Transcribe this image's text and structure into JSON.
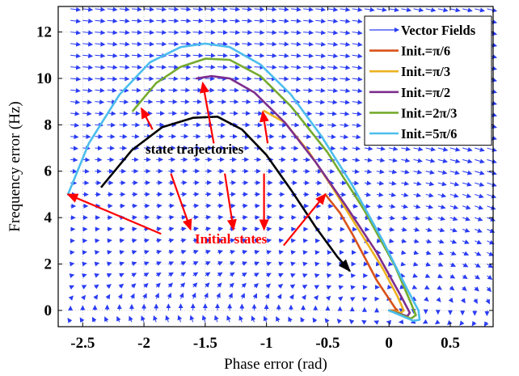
{
  "chart_data": {
    "type": "line",
    "xlabel": "Phase error (rad)",
    "ylabel": "Frequency error (Hz)",
    "xlim": [
      -2.7,
      0.85
    ],
    "ylim": [
      -0.7,
      13.1
    ],
    "xticks": [
      -2.5,
      -2,
      -1.5,
      -1,
      -0.5,
      0,
      0.5
    ],
    "xtick_labels": [
      "-2.5",
      "-2",
      "-1.5",
      "-1",
      "-0.5",
      "0",
      "0.5"
    ],
    "yticks": [
      0,
      2,
      4,
      6,
      8,
      10,
      12
    ],
    "ytick_labels": [
      "0",
      "2",
      "4",
      "6",
      "8",
      "10",
      "12"
    ],
    "grid": true,
    "legend_position": "top-right",
    "legend_label_prefix": "Init.=",
    "legend": [
      {
        "label": "Vector Fields",
        "symbol": "arrow",
        "color": "#2a3cf2"
      },
      {
        "label": "π/6",
        "symbol": "line",
        "color": "#d9531a"
      },
      {
        "label": "π/3",
        "symbol": "line",
        "color": "#edb11f"
      },
      {
        "label": "π/2",
        "symbol": "line",
        "color": "#7d2e8d"
      },
      {
        "label": "2π/3",
        "symbol": "line",
        "color": "#76ab2f"
      },
      {
        "label": "5π/6",
        "symbol": "line",
        "color": "#4cbded"
      }
    ],
    "series": [
      {
        "color": "#d9531a",
        "x": [
          -0.52,
          -0.4,
          -0.3,
          -0.2,
          -0.1,
          0.0,
          0.05,
          0.07,
          0.0
        ],
        "y": [
          5.0,
          4.2,
          3.3,
          2.3,
          1.3,
          0.5,
          0.1,
          0.0,
          0.0
        ]
      },
      {
        "color": "#edb11f",
        "x": [
          -1.02,
          -0.85,
          -0.65,
          -0.45,
          -0.25,
          -0.05,
          0.07,
          0.12,
          0.1,
          0.0
        ],
        "y": [
          8.6,
          8.1,
          6.8,
          5.2,
          3.5,
          1.8,
          0.6,
          0.0,
          -0.1,
          0.0
        ]
      },
      {
        "color": "#7d2e8d",
        "x": [
          -1.57,
          -1.45,
          -1.3,
          -1.1,
          -0.85,
          -0.6,
          -0.35,
          -0.1,
          0.1,
          0.17,
          0.15,
          0.0
        ],
        "y": [
          10.0,
          10.1,
          10.0,
          9.4,
          8.1,
          6.4,
          4.5,
          2.5,
          0.6,
          -0.1,
          -0.25,
          0.0
        ]
      },
      {
        "color": "#76ab2f",
        "x": [
          -2.09,
          -1.9,
          -1.7,
          -1.5,
          -1.3,
          -1.05,
          -0.8,
          -0.5,
          -0.2,
          0.05,
          0.18,
          0.22,
          0.18,
          0.0
        ],
        "y": [
          8.6,
          9.8,
          10.5,
          10.85,
          10.8,
          10.1,
          8.8,
          6.8,
          4.3,
          1.9,
          0.3,
          -0.2,
          -0.35,
          0.0
        ]
      },
      {
        "color": "#4cbded",
        "x": [
          -2.62,
          -2.45,
          -2.2,
          -1.95,
          -1.7,
          -1.5,
          -1.3,
          -1.05,
          -0.8,
          -0.55,
          -0.3,
          -0.05,
          0.15,
          0.24,
          0.25,
          0.2,
          0.0
        ],
        "y": [
          5.0,
          7.2,
          9.3,
          10.7,
          11.35,
          11.5,
          11.35,
          10.6,
          9.3,
          7.5,
          5.4,
          3.0,
          0.9,
          0.0,
          -0.4,
          -0.45,
          0.0
        ]
      }
    ],
    "annotations": {
      "trajectory_label": "state trajectories",
      "initial_label": "Initial states",
      "black_curve": {
        "color": "#000000",
        "x": [
          -2.35,
          -2.1,
          -1.85,
          -1.6,
          -1.4,
          -1.2,
          -1.0,
          -0.8,
          -0.6,
          -0.42,
          -0.32
        ],
        "y": [
          5.3,
          6.9,
          7.9,
          8.3,
          8.35,
          7.8,
          6.7,
          5.2,
          3.6,
          2.3,
          1.7
        ]
      },
      "red_arrows": [
        {
          "from": [
            -1.93,
            7.8
          ],
          "to": [
            -2.02,
            8.7
          ]
        },
        {
          "from": [
            -1.43,
            7.2
          ],
          "to": [
            -1.52,
            9.8
          ]
        },
        {
          "from": [
            -0.99,
            7.2
          ],
          "to": [
            -1.03,
            8.55
          ]
        },
        {
          "from": [
            -1.78,
            5.9
          ],
          "to": [
            -1.62,
            3.5
          ]
        },
        {
          "from": [
            -1.34,
            5.9
          ],
          "to": [
            -1.27,
            3.5
          ]
        },
        {
          "from": [
            -1.02,
            5.9
          ],
          "to": [
            -1.02,
            3.5
          ]
        },
        {
          "from": [
            -1.86,
            3.3
          ],
          "to": [
            -2.62,
            5.0
          ]
        },
        {
          "from": [
            -0.86,
            2.8
          ],
          "to": [
            -0.52,
            5.0
          ]
        }
      ]
    }
  }
}
